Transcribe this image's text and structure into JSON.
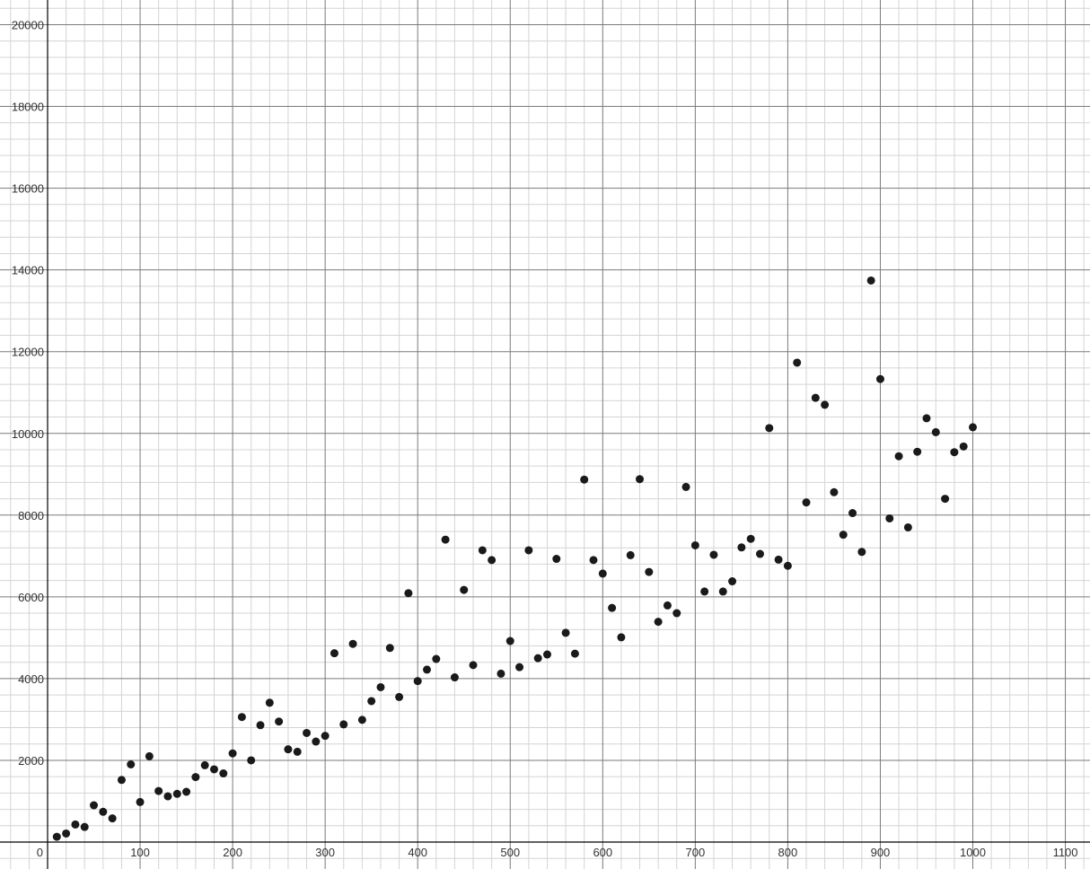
{
  "chart_data": {
    "type": "scatter",
    "title": "",
    "xlabel": "",
    "ylabel": "",
    "xlim": [
      0,
      1100
    ],
    "ylim": [
      0,
      20000
    ],
    "grid": true,
    "x_ticks": [
      100,
      200,
      300,
      400,
      500,
      600,
      700,
      800,
      900,
      1000,
      1100
    ],
    "x_tick_labels": [
      "100",
      "200",
      "300",
      "400",
      "500",
      "600",
      "700",
      "800",
      "900",
      "1000",
      "1100"
    ],
    "y_ticks": [
      2000,
      4000,
      6000,
      8000,
      10000,
      12000,
      14000,
      16000,
      18000,
      20000
    ],
    "y_tick_labels": [
      "2000",
      "4000",
      "6000",
      "8000",
      "10000",
      "12000",
      "14000",
      "16000",
      "18000",
      "20000"
    ],
    "origin_label": "0",
    "colors": {
      "points": "#1a1a1a",
      "major_grid": "#7a7a7a",
      "minor_grid": "#d4d4d4",
      "axis": "#000000"
    },
    "points": [
      [
        10,
        130
      ],
      [
        20,
        210
      ],
      [
        30,
        430
      ],
      [
        40,
        370
      ],
      [
        50,
        900
      ],
      [
        60,
        740
      ],
      [
        70,
        580
      ],
      [
        80,
        1520
      ],
      [
        90,
        1900
      ],
      [
        100,
        980
      ],
      [
        110,
        2100
      ],
      [
        120,
        1250
      ],
      [
        130,
        1120
      ],
      [
        140,
        1180
      ],
      [
        150,
        1230
      ],
      [
        160,
        1590
      ],
      [
        170,
        1880
      ],
      [
        180,
        1780
      ],
      [
        190,
        1680
      ],
      [
        200,
        2170
      ],
      [
        210,
        3060
      ],
      [
        220,
        2000
      ],
      [
        230,
        2860
      ],
      [
        240,
        3410
      ],
      [
        250,
        2950
      ],
      [
        260,
        2270
      ],
      [
        270,
        2210
      ],
      [
        280,
        2670
      ],
      [
        290,
        2460
      ],
      [
        300,
        2600
      ],
      [
        310,
        4620
      ],
      [
        320,
        2880
      ],
      [
        330,
        4850
      ],
      [
        340,
        2990
      ],
      [
        350,
        3450
      ],
      [
        360,
        3790
      ],
      [
        370,
        4750
      ],
      [
        380,
        3550
      ],
      [
        390,
        6090
      ],
      [
        400,
        3940
      ],
      [
        410,
        4220
      ],
      [
        420,
        4480
      ],
      [
        430,
        7400
      ],
      [
        440,
        4030
      ],
      [
        450,
        6170
      ],
      [
        460,
        4330
      ],
      [
        470,
        7140
      ],
      [
        480,
        6900
      ],
      [
        490,
        4120
      ],
      [
        500,
        4920
      ],
      [
        510,
        4280
      ],
      [
        520,
        7140
      ],
      [
        530,
        4500
      ],
      [
        540,
        4590
      ],
      [
        550,
        6930
      ],
      [
        560,
        5120
      ],
      [
        570,
        4610
      ],
      [
        580,
        8870
      ],
      [
        590,
        6900
      ],
      [
        600,
        6570
      ],
      [
        610,
        5730
      ],
      [
        620,
        5010
      ],
      [
        630,
        7020
      ],
      [
        640,
        8880
      ],
      [
        650,
        6610
      ],
      [
        660,
        5390
      ],
      [
        670,
        5790
      ],
      [
        680,
        5600
      ],
      [
        690,
        8690
      ],
      [
        700,
        7260
      ],
      [
        710,
        6130
      ],
      [
        720,
        7030
      ],
      [
        730,
        6130
      ],
      [
        740,
        6380
      ],
      [
        750,
        7210
      ],
      [
        760,
        7420
      ],
      [
        770,
        7050
      ],
      [
        780,
        10130
      ],
      [
        790,
        6910
      ],
      [
        800,
        6760
      ],
      [
        810,
        11730
      ],
      [
        820,
        8310
      ],
      [
        830,
        10870
      ],
      [
        840,
        10700
      ],
      [
        850,
        8560
      ],
      [
        860,
        7520
      ],
      [
        870,
        8050
      ],
      [
        880,
        7100
      ],
      [
        890,
        13740
      ],
      [
        900,
        11330
      ],
      [
        910,
        7920
      ],
      [
        920,
        9440
      ],
      [
        930,
        7700
      ],
      [
        940,
        9550
      ],
      [
        950,
        10370
      ],
      [
        960,
        10030
      ],
      [
        970,
        8400
      ],
      [
        980,
        9540
      ],
      [
        990,
        9680
      ],
      [
        1000,
        10150
      ]
    ]
  }
}
